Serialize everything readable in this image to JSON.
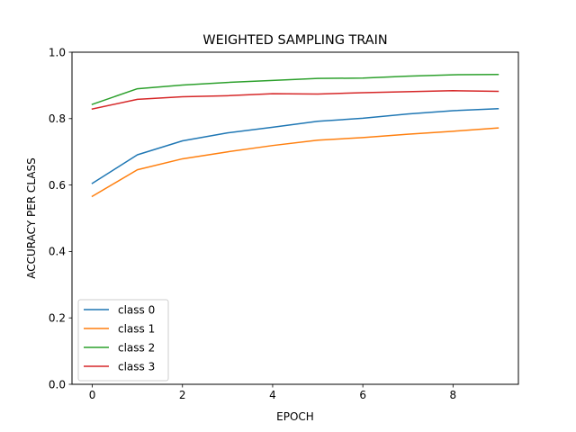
{
  "chart_data": {
    "type": "line",
    "title": "WEIGHTED SAMPLING TRAIN",
    "xlabel": "EPOCH",
    "ylabel": "ACCURACY PER CLASS",
    "xlim": [
      -0.45,
      9.45
    ],
    "ylim": [
      0.0,
      1.0
    ],
    "xticks": [
      0,
      2,
      4,
      6,
      8
    ],
    "yticks": [
      0.0,
      0.2,
      0.4,
      0.6,
      0.8,
      1.0
    ],
    "xtick_labels": [
      "0",
      "2",
      "4",
      "6",
      "8"
    ],
    "ytick_labels": [
      "0.0",
      "0.2",
      "0.4",
      "0.6",
      "0.8",
      "1.0"
    ],
    "grid": false,
    "legend_position": "lower-left",
    "x": [
      0,
      1,
      2,
      3,
      4,
      5,
      6,
      7,
      8,
      9
    ],
    "series": [
      {
        "name": "class 0",
        "color": "#1f77b4",
        "values": [
          0.605,
          0.691,
          0.733,
          0.757,
          0.774,
          0.792,
          0.801,
          0.814,
          0.824,
          0.83
        ]
      },
      {
        "name": "class 1",
        "color": "#ff7f0e",
        "values": [
          0.566,
          0.646,
          0.679,
          0.7,
          0.719,
          0.735,
          0.743,
          0.753,
          0.762,
          0.772
        ]
      },
      {
        "name": "class 2",
        "color": "#2ca02c",
        "values": [
          0.843,
          0.89,
          0.901,
          0.909,
          0.915,
          0.921,
          0.922,
          0.928,
          0.932,
          0.933
        ]
      },
      {
        "name": "class 3",
        "color": "#d62728",
        "values": [
          0.829,
          0.858,
          0.866,
          0.869,
          0.875,
          0.874,
          0.878,
          0.881,
          0.884,
          0.882
        ]
      }
    ]
  }
}
